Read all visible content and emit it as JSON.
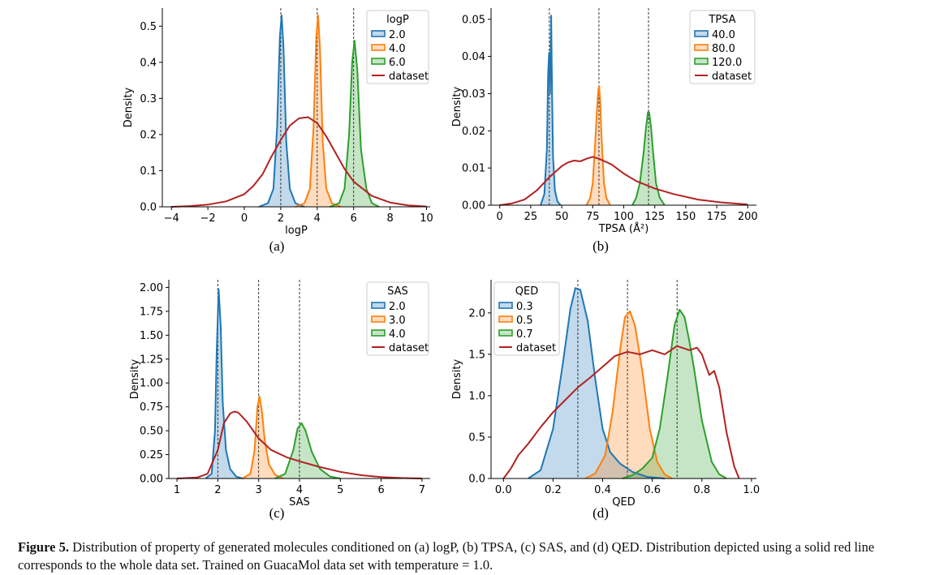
{
  "figure": {
    "caption_label": "Figure 5.",
    "caption_text": " Distribution of property of generated molecules conditioned on (a) logP, (b) TPSA, (c) SAS, and (d) QED. Distribution depicted using a solid red line corresponds to the whole data set. Trained on GuacaMol data set with temperature = 1.0."
  },
  "colors": {
    "blue": "#1f77b4",
    "orange": "#ff7f0e",
    "green": "#2ca02c",
    "dataset": "#b22222"
  },
  "chart_data": [
    {
      "type": "area",
      "sublabel": "(a)",
      "xlabel": "logP",
      "ylabel": "Density",
      "xlim": [
        -4.5,
        10.2
      ],
      "ylim": [
        0,
        0.55
      ],
      "xticks": [
        -4,
        -2,
        0,
        2,
        4,
        6,
        8,
        10
      ],
      "xtick_labels": [
        "−4",
        "−2",
        "0",
        "2",
        "4",
        "6",
        "8",
        "10"
      ],
      "yticks": [
        0,
        0.1,
        0.2,
        0.3,
        0.4,
        0.5
      ],
      "ytick_labels": [
        "0.0",
        "0.1",
        "0.2",
        "0.3",
        "0.4",
        "0.5"
      ],
      "legend_title": "logP",
      "legend_placement": "top-right",
      "vlines": [
        2,
        4,
        6
      ],
      "series": [
        {
          "name": "2.0",
          "color": "#1f77b4",
          "fill": true,
          "x": [
            0.8,
            1.3,
            1.6,
            1.8,
            1.95,
            2.05,
            2.15,
            2.3,
            2.5,
            2.8,
            3.3
          ],
          "y": [
            0.0,
            0.01,
            0.05,
            0.22,
            0.47,
            0.53,
            0.44,
            0.18,
            0.05,
            0.01,
            0.0
          ]
        },
        {
          "name": "4.0",
          "color": "#ff7f0e",
          "fill": true,
          "x": [
            2.8,
            3.3,
            3.6,
            3.8,
            3.95,
            4.05,
            4.15,
            4.3,
            4.5,
            4.8,
            5.3
          ],
          "y": [
            0.0,
            0.01,
            0.05,
            0.22,
            0.47,
            0.53,
            0.44,
            0.18,
            0.05,
            0.01,
            0.0
          ]
        },
        {
          "name": "6.0",
          "color": "#2ca02c",
          "fill": true,
          "x": [
            4.7,
            5.2,
            5.5,
            5.75,
            5.92,
            6.05,
            6.2,
            6.4,
            6.7,
            7.0,
            7.4
          ],
          "y": [
            0.0,
            0.01,
            0.05,
            0.2,
            0.4,
            0.46,
            0.38,
            0.16,
            0.05,
            0.01,
            0.0
          ]
        },
        {
          "name": "dataset",
          "color": "#b22222",
          "fill": false,
          "x": [
            -4,
            -3,
            -2,
            -1,
            0,
            0.5,
            1,
            1.5,
            2,
            2.5,
            3,
            3.5,
            4,
            4.5,
            5,
            5.5,
            6,
            7,
            8,
            9,
            10
          ],
          "y": [
            0.0,
            0.002,
            0.006,
            0.015,
            0.035,
            0.058,
            0.09,
            0.14,
            0.185,
            0.225,
            0.245,
            0.248,
            0.232,
            0.195,
            0.15,
            0.105,
            0.07,
            0.03,
            0.012,
            0.004,
            0.001
          ]
        }
      ]
    },
    {
      "type": "area",
      "sublabel": "(b)",
      "xlabel": "TPSA (Å²)",
      "ylabel": "Density",
      "xlim": [
        -7,
        207
      ],
      "ylim": [
        0,
        0.053
      ],
      "xticks": [
        0,
        25,
        50,
        75,
        100,
        125,
        150,
        175,
        200
      ],
      "xtick_labels": [
        "0",
        "25",
        "50",
        "75",
        "100",
        "125",
        "150",
        "175",
        "200"
      ],
      "yticks": [
        0,
        0.01,
        0.02,
        0.03,
        0.04,
        0.05
      ],
      "ytick_labels": [
        "0.00",
        "0.01",
        "0.02",
        "0.03",
        "0.04",
        "0.05"
      ],
      "legend_title": "TPSA",
      "legend_placement": "top-right",
      "vlines": [
        40,
        80,
        120
      ],
      "series": [
        {
          "name": "40.0",
          "color": "#1f77b4",
          "fill": true,
          "x": [
            33,
            36,
            38,
            39,
            39.8,
            40.5,
            41,
            41.5,
            42.2,
            43,
            44.5,
            46.5,
            49
          ],
          "y": [
            0.0,
            0.003,
            0.015,
            0.035,
            0.041,
            0.03,
            0.04,
            0.051,
            0.03,
            0.013,
            0.004,
            0.001,
            0.0
          ]
        },
        {
          "name": "80.0",
          "color": "#ff7f0e",
          "fill": true,
          "x": [
            70,
            73,
            75,
            77,
            78.5,
            79.5,
            80.2,
            81,
            82,
            84,
            86,
            89
          ],
          "y": [
            0.0,
            0.002,
            0.006,
            0.017,
            0.026,
            0.031,
            0.032,
            0.028,
            0.019,
            0.006,
            0.002,
            0.0
          ]
        },
        {
          "name": "120.0",
          "color": "#2ca02c",
          "fill": true,
          "x": [
            107,
            110,
            113,
            116,
            118,
            119.5,
            120.5,
            122,
            124,
            126,
            129,
            133
          ],
          "y": [
            0.0,
            0.002,
            0.006,
            0.014,
            0.021,
            0.025,
            0.025,
            0.021,
            0.013,
            0.006,
            0.002,
            0.0
          ]
        },
        {
          "name": "dataset",
          "color": "#b22222",
          "fill": false,
          "x": [
            0,
            10,
            20,
            30,
            40,
            50,
            55,
            60,
            65,
            70,
            75,
            80,
            90,
            100,
            110,
            125,
            140,
            160,
            180,
            200
          ],
          "y": [
            0.0,
            0.0005,
            0.0015,
            0.004,
            0.0075,
            0.0105,
            0.0115,
            0.012,
            0.0118,
            0.0125,
            0.013,
            0.0125,
            0.011,
            0.0085,
            0.0065,
            0.0045,
            0.003,
            0.0015,
            0.0007,
            0.0002
          ]
        }
      ]
    },
    {
      "type": "area",
      "sublabel": "(c)",
      "xlabel": "SAS",
      "ylabel": "Density",
      "xlim": [
        0.8,
        7.2
      ],
      "ylim": [
        0,
        2.08
      ],
      "xticks": [
        1,
        2,
        3,
        4,
        5,
        6,
        7
      ],
      "xtick_labels": [
        "1",
        "2",
        "3",
        "4",
        "5",
        "6",
        "7"
      ],
      "yticks": [
        0,
        0.25,
        0.5,
        0.75,
        1.0,
        1.25,
        1.5,
        1.75,
        2.0
      ],
      "ytick_labels": [
        "0.00",
        "0.25",
        "0.50",
        "0.75",
        "1.00",
        "1.25",
        "1.50",
        "1.75",
        "2.00"
      ],
      "legend_title": "SAS",
      "legend_placement": "top-right",
      "vlines": [
        2,
        3,
        4
      ],
      "series": [
        {
          "name": "2.0",
          "color": "#1f77b4",
          "fill": true,
          "x": [
            1.7,
            1.85,
            1.93,
            1.97,
            2.02,
            2.07,
            2.12,
            2.2,
            2.3,
            2.45,
            2.6
          ],
          "y": [
            0.0,
            0.05,
            0.5,
            1.3,
            1.98,
            1.6,
            0.8,
            0.3,
            0.1,
            0.02,
            0.0
          ]
        },
        {
          "name": "3.0",
          "color": "#ff7f0e",
          "fill": true,
          "x": [
            2.6,
            2.8,
            2.9,
            2.97,
            3.02,
            3.08,
            3.15,
            3.25,
            3.4,
            3.6
          ],
          "y": [
            0.0,
            0.05,
            0.3,
            0.75,
            0.86,
            0.7,
            0.4,
            0.15,
            0.04,
            0.0
          ]
        },
        {
          "name": "4.0",
          "color": "#2ca02c",
          "fill": true,
          "x": [
            3.4,
            3.65,
            3.85,
            3.95,
            4.05,
            4.15,
            4.3,
            4.5,
            4.75,
            5.0
          ],
          "y": [
            0.0,
            0.05,
            0.3,
            0.52,
            0.58,
            0.5,
            0.28,
            0.1,
            0.02,
            0.0
          ]
        },
        {
          "name": "dataset",
          "color": "#b22222",
          "fill": false,
          "x": [
            1,
            1.5,
            1.75,
            2,
            2.15,
            2.3,
            2.4,
            2.5,
            2.7,
            3,
            3.3,
            3.7,
            4,
            4.5,
            5,
            5.5,
            6,
            6.5,
            7
          ],
          "y": [
            0.0,
            0.01,
            0.05,
            0.3,
            0.58,
            0.68,
            0.7,
            0.69,
            0.6,
            0.42,
            0.3,
            0.22,
            0.18,
            0.12,
            0.07,
            0.035,
            0.015,
            0.005,
            0.0
          ]
        }
      ]
    },
    {
      "type": "area",
      "sublabel": "(d)",
      "xlabel": "QED",
      "ylabel": "Density",
      "xlim": [
        -0.05,
        1.02
      ],
      "ylim": [
        0,
        2.4
      ],
      "xticks": [
        0,
        0.2,
        0.4,
        0.6,
        0.8,
        1.0
      ],
      "xtick_labels": [
        "0.0",
        "0.2",
        "0.4",
        "0.6",
        "0.8",
        "1.0"
      ],
      "yticks": [
        0,
        0.5,
        1.0,
        1.5,
        2.0
      ],
      "ytick_labels": [
        "0.0",
        "0.5",
        "1.0",
        "1.5",
        "2.0"
      ],
      "legend_title": "QED",
      "legend_placement": "top-left",
      "vlines": [
        0.3,
        0.5,
        0.7
      ],
      "series": [
        {
          "name": "0.3",
          "color": "#1f77b4",
          "fill": true,
          "x": [
            0.1,
            0.15,
            0.2,
            0.24,
            0.27,
            0.29,
            0.31,
            0.34,
            0.37,
            0.4,
            0.43,
            0.47,
            0.52,
            0.58,
            0.65
          ],
          "y": [
            0.0,
            0.1,
            0.6,
            1.4,
            2.05,
            2.3,
            2.28,
            1.9,
            1.2,
            0.6,
            0.32,
            0.18,
            0.08,
            0.02,
            0.0
          ]
        },
        {
          "name": "0.5",
          "color": "#ff7f0e",
          "fill": true,
          "x": [
            0.33,
            0.37,
            0.41,
            0.44,
            0.47,
            0.49,
            0.51,
            0.53,
            0.56,
            0.59,
            0.62,
            0.65,
            0.68
          ],
          "y": [
            0.0,
            0.06,
            0.28,
            0.8,
            1.55,
            1.95,
            2.02,
            1.85,
            1.3,
            0.6,
            0.2,
            0.05,
            0.0
          ]
        },
        {
          "name": "0.7",
          "color": "#2ca02c",
          "fill": true,
          "x": [
            0.48,
            0.52,
            0.56,
            0.6,
            0.63,
            0.66,
            0.69,
            0.71,
            0.73,
            0.75,
            0.77,
            0.8,
            0.84,
            0.87,
            0.9
          ],
          "y": [
            0.0,
            0.04,
            0.12,
            0.25,
            0.6,
            1.2,
            1.85,
            2.04,
            1.95,
            1.65,
            1.3,
            0.7,
            0.2,
            0.05,
            0.0
          ]
        },
        {
          "name": "dataset",
          "color": "#b22222",
          "fill": false,
          "x": [
            0.0,
            0.03,
            0.06,
            0.1,
            0.15,
            0.2,
            0.25,
            0.3,
            0.35,
            0.4,
            0.45,
            0.5,
            0.55,
            0.6,
            0.65,
            0.7,
            0.75,
            0.78,
            0.8,
            0.83,
            0.85,
            0.87,
            0.9,
            0.93,
            0.95
          ],
          "y": [
            0.0,
            0.12,
            0.28,
            0.42,
            0.62,
            0.8,
            0.95,
            1.1,
            1.22,
            1.35,
            1.48,
            1.53,
            1.5,
            1.55,
            1.5,
            1.6,
            1.55,
            1.58,
            1.5,
            1.25,
            1.3,
            1.1,
            0.55,
            0.15,
            0.0
          ]
        }
      ]
    }
  ]
}
